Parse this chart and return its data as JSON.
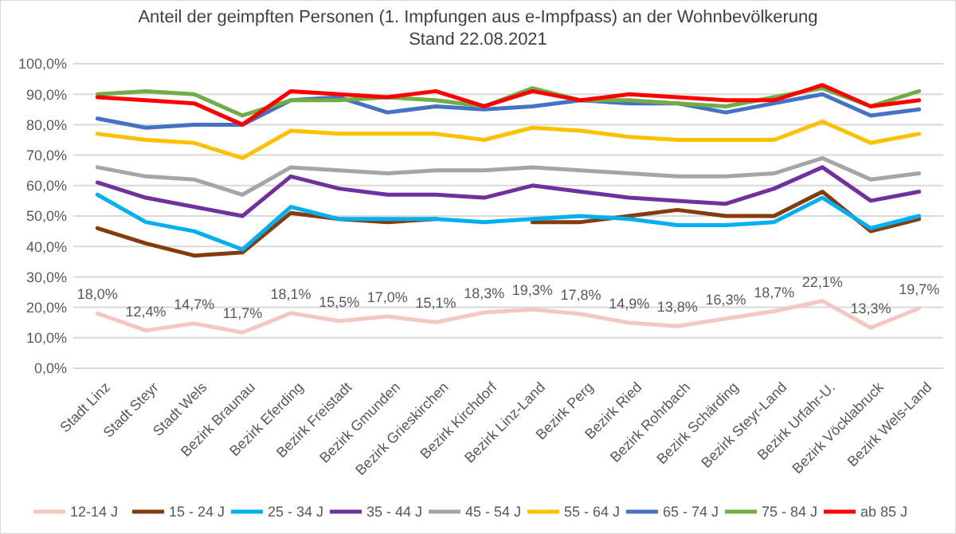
{
  "chart_data": {
    "type": "line",
    "title": "Anteil der geimpften Personen (1. Impfungen aus e-Impfpass) an der Wohnbevölkerung",
    "subtitle": "Stand 22.08.2021",
    "categories": [
      "Stadt Linz",
      "Stadt Steyr",
      "Stadt Wels",
      "Bezirk Braunau",
      "Bezirk Eferding",
      "Bezirk Freistadt",
      "Bezirk Gmunden",
      "Bezirk Grieskirchen",
      "Bezirk Kirchdorf",
      "Bezirk Linz-Land",
      "Bezirk Perg",
      "Bezirk Ried",
      "Bezirk Rohrbach",
      "Bezirk Schärding",
      "Bezirk Steyr-Land",
      "Bezirk Urfahr-U.",
      "Bezirk Vöcklabruck",
      "Bezirk Wels-Land"
    ],
    "series": [
      {
        "name": "12-14 J",
        "color": "#f4c7c3",
        "values": [
          18.0,
          12.4,
          14.7,
          11.7,
          18.1,
          15.5,
          17.0,
          15.1,
          18.3,
          19.3,
          17.8,
          14.9,
          13.8,
          16.3,
          18.7,
          22.1,
          13.3,
          19.7
        ],
        "value_labels": [
          "18,0%",
          "12,4%",
          "14,7%",
          "11,7%",
          "18,1%",
          "15,5%",
          "17,0%",
          "15,1%",
          "18,3%",
          "19,3%",
          "17,8%",
          "14,9%",
          "13,8%",
          "16,3%",
          "18,7%",
          "22,1%",
          "13,3%",
          "19,7%"
        ]
      },
      {
        "name": "15 - 24 J",
        "color": "#843c0c",
        "values": [
          46,
          41,
          37,
          38,
          51,
          49,
          48,
          49,
          null,
          48,
          48,
          50,
          52,
          50,
          50,
          58,
          45,
          49
        ]
      },
      {
        "name": "25 - 34 J",
        "color": "#00b0f0",
        "values": [
          57,
          48,
          45,
          39,
          53,
          49,
          49,
          49,
          48,
          49,
          50,
          49,
          47,
          47,
          48,
          56,
          46,
          50
        ]
      },
      {
        "name": "35 - 44 J",
        "color": "#7030a0",
        "values": [
          61,
          56,
          53,
          50,
          63,
          59,
          57,
          57,
          56,
          60,
          58,
          56,
          55,
          54,
          59,
          66,
          55,
          58
        ]
      },
      {
        "name": "45 - 54 J",
        "color": "#a5a5a5",
        "values": [
          66,
          63,
          62,
          57,
          66,
          65,
          64,
          65,
          65,
          66,
          65,
          64,
          63,
          63,
          64,
          69,
          62,
          64
        ]
      },
      {
        "name": "55 - 64 J",
        "color": "#ffc000",
        "values": [
          77,
          75,
          74,
          69,
          78,
          77,
          77,
          77,
          75,
          79,
          78,
          76,
          75,
          75,
          75,
          81,
          74,
          77
        ]
      },
      {
        "name": "65 - 74 J",
        "color": "#4472c4",
        "values": [
          82,
          79,
          80,
          80,
          88,
          89,
          84,
          86,
          85,
          86,
          88,
          87,
          87,
          84,
          87,
          90,
          83,
          85
        ]
      },
      {
        "name": "75 - 84 J",
        "color": "#70ad47",
        "values": [
          90,
          91,
          90,
          83,
          88,
          88,
          89,
          88,
          86,
          92,
          88,
          88,
          87,
          86,
          89,
          92,
          86,
          91
        ]
      },
      {
        "name": "ab 85 J",
        "color": "#ff0000",
        "values": [
          89,
          88,
          87,
          80,
          91,
          90,
          89,
          91,
          86,
          91,
          88,
          90,
          89,
          88,
          88,
          93,
          86,
          88
        ]
      }
    ],
    "ylim": [
      0,
      100
    ],
    "yticks": [
      {
        "value": 0,
        "label": "0,0%"
      },
      {
        "value": 10,
        "label": "10,0%"
      },
      {
        "value": 20,
        "label": "20,0%"
      },
      {
        "value": 30,
        "label": "30,0%"
      },
      {
        "value": 40,
        "label": "40,0%"
      },
      {
        "value": 50,
        "label": "50,0%"
      },
      {
        "value": 60,
        "label": "60,0%"
      },
      {
        "value": 70,
        "label": "70,0%"
      },
      {
        "value": 80,
        "label": "80,0%"
      },
      {
        "value": 90,
        "label": "90,0%"
      },
      {
        "value": 100,
        "label": "100,0%"
      }
    ],
    "grid": "y",
    "legend": "bottom"
  }
}
